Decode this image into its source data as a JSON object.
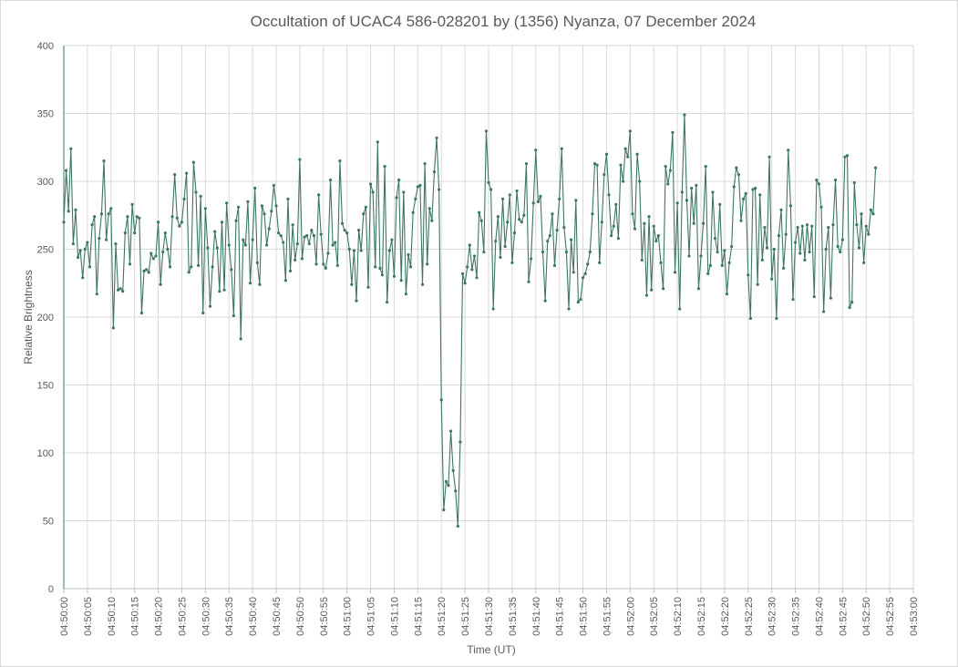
{
  "chart_data": {
    "type": "line",
    "title": "Occultation of UCAC4 586-028201 by (1356) Nyanza, 07 December 2024",
    "xlabel": "Time (UT)",
    "ylabel": "Relative Brightness",
    "ylim": [
      0,
      400
    ],
    "y_ticks": [
      0,
      50,
      100,
      150,
      200,
      250,
      300,
      350,
      400
    ],
    "x_start_seconds": 0,
    "x_end_seconds": 180,
    "x_ticks": [
      "04:50:00",
      "04:50:05",
      "04:50:10",
      "04:50:15",
      "04:50:20",
      "04:50:25",
      "04:50:30",
      "04:50:35",
      "04:50:40",
      "04:50:45",
      "04:50:50",
      "04:50:55",
      "04:51:00",
      "04:51:05",
      "04:51:10",
      "04:51:15",
      "04:51:20",
      "04:51:25",
      "04:51:30",
      "04:51:35",
      "04:51:40",
      "04:51:45",
      "04:51:50",
      "04:51:55",
      "04:52:00",
      "04:52:05",
      "04:52:10",
      "04:52:15",
      "04:52:20",
      "04:52:25",
      "04:52:30",
      "04:52:35",
      "04:52:40",
      "04:52:45",
      "04:52:50",
      "04:52:55",
      "04:53:00"
    ],
    "grid": true,
    "legend": "none",
    "series": [
      {
        "color": "#3d7763",
        "sample_interval_seconds": 0.5,
        "values": [
          270,
          308,
          278,
          324,
          254,
          279,
          244,
          249,
          229,
          250,
          255,
          237,
          268,
          274,
          217,
          258,
          276,
          315,
          257,
          276,
          280,
          192,
          254,
          220,
          221,
          219,
          262,
          274,
          239,
          283,
          262,
          274,
          273,
          203,
          234,
          235,
          233,
          247,
          243,
          245,
          270,
          224,
          248,
          262,
          250,
          237,
          274,
          305,
          273,
          267,
          270,
          287,
          306,
          233,
          237,
          314,
          292,
          238,
          289,
          203,
          280,
          251,
          208,
          237,
          263,
          251,
          219,
          270,
          220,
          284,
          253,
          235,
          201,
          271,
          281,
          184,
          257,
          253,
          285,
          225,
          257,
          295,
          240,
          224,
          282,
          276,
          253,
          265,
          278,
          297,
          282,
          262,
          260,
          255,
          227,
          287,
          234,
          268,
          242,
          254,
          316,
          243,
          259,
          260,
          254,
          264,
          260,
          239,
          290,
          261,
          239,
          236,
          247,
          301,
          253,
          255,
          238,
          315,
          269,
          264,
          262,
          250,
          224,
          249,
          212,
          264,
          249,
          276,
          281,
          222,
          298,
          292,
          237,
          329,
          236,
          231,
          311,
          211,
          249,
          257,
          230,
          288,
          301,
          227,
          292,
          217,
          246,
          237,
          277,
          287,
          296,
          297,
          224,
          313,
          239,
          280,
          271,
          307,
          332,
          294,
          139,
          58,
          79,
          76,
          116,
          87,
          72,
          46,
          108,
          232,
          225,
          237,
          253,
          235,
          245,
          229,
          277,
          271,
          248,
          337,
          299,
          294,
          206,
          256,
          274,
          244,
          287,
          252,
          270,
          290,
          240,
          262,
          293,
          272,
          270,
          275,
          313,
          226,
          243,
          284,
          323,
          285,
          289,
          248,
          212,
          256,
          260,
          276,
          238,
          264,
          287,
          324,
          266,
          248,
          206,
          257,
          233,
          286,
          211,
          213,
          229,
          232,
          239,
          248,
          276,
          313,
          312,
          240,
          270,
          305,
          320,
          290,
          260,
          267,
          283,
          258,
          312,
          300,
          324,
          318,
          337,
          276,
          265,
          320,
          300,
          242,
          269,
          216,
          274,
          220,
          267,
          256,
          260,
          240,
          221,
          311,
          298,
          308,
          336,
          233,
          284,
          206,
          292,
          349,
          286,
          245,
          295,
          269,
          297,
          221,
          245,
          269,
          311,
          232,
          238,
          292,
          258,
          248,
          283,
          238,
          249,
          217,
          240,
          252,
          296,
          310,
          305,
          271,
          287,
          291,
          231,
          199,
          294,
          295,
          224,
          290,
          242,
          266,
          251,
          318,
          228,
          250,
          199,
          260,
          279,
          236,
          261,
          323,
          282,
          213,
          255,
          266,
          247,
          267,
          242,
          268,
          248,
          267,
          215,
          301,
          298,
          281,
          204,
          250,
          266,
          214,
          268,
          301,
          252,
          248,
          257,
          318,
          319,
          207,
          211,
          299,
          268,
          251,
          276,
          240,
          267,
          261,
          279,
          276,
          310
        ]
      }
    ]
  }
}
